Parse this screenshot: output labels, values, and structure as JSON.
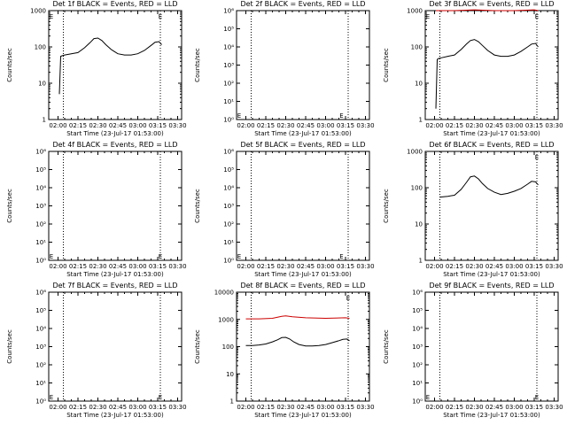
{
  "figure": {
    "common_x_ticks": [
      "02:00",
      "02:15",
      "02:30",
      "02:45",
      "03:00",
      "03:15",
      "03:30"
    ],
    "common_xlabel": "Start Time (23-Jul-17 01:53:00)",
    "common_ylabel": "Counts/sec",
    "colors": {
      "events": "#000000",
      "lld": "#cc0000",
      "axes": "#000000"
    }
  },
  "chart_data": [
    {
      "type": "line",
      "title": "Det 1f BLACK = Events, RED = LLD",
      "xlabel": "Start Time (23-Jul-17 01:53:00)",
      "ylabel": "Counts/sec",
      "xlim": [
        "01:53",
        "03:33"
      ],
      "yscale": "log",
      "ylim": [
        1,
        1000
      ],
      "y_ticks": [
        "1",
        "10",
        "100",
        "1000"
      ],
      "vlines": [
        "02:04",
        "03:17"
      ],
      "markers": [
        {
          "text": "E",
          "x": "01:55",
          "y": "top"
        },
        {
          "text": "E",
          "x": "03:17",
          "y": "top"
        }
      ],
      "series": [
        {
          "color": "#000000",
          "x": [
            "02:01",
            "02:02",
            "02:03",
            "02:05",
            "02:10",
            "02:15",
            "02:20",
            "02:24",
            "02:27",
            "02:30",
            "02:33",
            "02:36",
            "02:40",
            "02:45",
            "02:50",
            "02:55",
            "03:00",
            "03:05",
            "03:10",
            "03:13",
            "03:16",
            "03:18"
          ],
          "y": [
            5,
            55,
            57,
            60,
            65,
            70,
            95,
            130,
            170,
            175,
            150,
            115,
            85,
            65,
            60,
            60,
            65,
            80,
            110,
            135,
            140,
            115
          ]
        }
      ]
    },
    {
      "type": "line",
      "title": "Det 2f BLACK = Events, RED = LLD",
      "xlabel": "Start Time (23-Jul-17 01:53:00)",
      "ylabel": "Counts/sec",
      "xlim": [
        "01:53",
        "03:33"
      ],
      "yscale": "log",
      "ylim": [
        1,
        1000000
      ],
      "y_ticks": [
        "10⁰",
        "10¹",
        "10²",
        "10³",
        "10⁴",
        "10⁵",
        "10⁶"
      ],
      "vlines": [
        "02:04",
        "03:17"
      ],
      "markers": [
        {
          "text": "E",
          "x": "01:55",
          "y": "bottom"
        },
        {
          "text": "E",
          "x": "03:12",
          "y": "bottom"
        }
      ],
      "series": []
    },
    {
      "type": "line",
      "title": "Det 3f BLACK = Events, RED = LLD",
      "xlabel": "Start Time (23-Jul-17 01:53:00)",
      "ylabel": "Counts/sec",
      "xlim": [
        "01:53",
        "03:33"
      ],
      "yscale": "log",
      "ylim": [
        1,
        1000
      ],
      "y_ticks": [
        "1",
        "10",
        "100",
        "1000"
      ],
      "vlines": [
        "02:04",
        "03:17"
      ],
      "markers": [
        {
          "text": "E",
          "x": "01:55",
          "y": "top"
        },
        {
          "text": "E",
          "x": "03:17",
          "y": "top"
        }
      ],
      "series": [
        {
          "color": "#000000",
          "x": [
            "02:01",
            "02:02",
            "02:03",
            "02:05",
            "02:10",
            "02:15",
            "02:20",
            "02:24",
            "02:27",
            "02:30",
            "02:33",
            "02:36",
            "02:40",
            "02:45",
            "02:50",
            "02:55",
            "03:00",
            "03:05",
            "03:10",
            "03:13",
            "03:16",
            "03:18"
          ],
          "y": [
            2,
            45,
            48,
            50,
            55,
            60,
            85,
            120,
            150,
            160,
            140,
            110,
            80,
            60,
            55,
            55,
            60,
            75,
            100,
            120,
            125,
            100
          ]
        },
        {
          "color": "#cc0000",
          "x": [
            "02:01",
            "02:15",
            "02:30",
            "02:45",
            "03:00",
            "03:15",
            "03:18"
          ],
          "y": [
            1000,
            1000,
            1050,
            1000,
            1000,
            1050,
            1000
          ]
        }
      ]
    },
    {
      "type": "line",
      "title": "Det 4f BLACK = Events, RED = LLD",
      "xlabel": "Start Time (23-Jul-17 01:53:00)",
      "ylabel": "Counts/sec",
      "xlim": [
        "01:53",
        "03:33"
      ],
      "yscale": "log",
      "ylim": [
        1,
        1000000
      ],
      "y_ticks": [
        "10⁰",
        "10¹",
        "10²",
        "10³",
        "10⁴",
        "10⁵",
        "10⁶"
      ],
      "vlines": [
        "02:04",
        "03:17"
      ],
      "markers": [
        {
          "text": "E",
          "x": "01:55",
          "y": "bottom"
        },
        {
          "text": "E",
          "x": "03:17",
          "y": "bottom"
        }
      ],
      "series": []
    },
    {
      "type": "line",
      "title": "Det 5f BLACK = Events, RED = LLD",
      "xlabel": "Start Time (23-Jul-17 01:53:00)",
      "ylabel": "Counts/sec",
      "xlim": [
        "01:53",
        "03:33"
      ],
      "yscale": "log",
      "ylim": [
        1,
        1000000
      ],
      "y_ticks": [
        "10⁰",
        "10¹",
        "10²",
        "10³",
        "10⁴",
        "10⁵",
        "10⁶"
      ],
      "vlines": [
        "02:04",
        "03:17"
      ],
      "markers": [
        {
          "text": "E",
          "x": "01:55",
          "y": "bottom"
        },
        {
          "text": "E",
          "x": "03:12",
          "y": "bottom"
        }
      ],
      "series": []
    },
    {
      "type": "line",
      "title": "Det 6f BLACK = Events, RED = LLD",
      "xlabel": "Start Time (23-Jul-17 01:53:00)",
      "ylabel": "Counts/sec",
      "xlim": [
        "01:53",
        "03:33"
      ],
      "yscale": "log",
      "ylim": [
        1,
        1000
      ],
      "y_ticks": [
        "1",
        "10",
        "100",
        "1000"
      ],
      "vlines": [
        "02:04",
        "03:17"
      ],
      "markers": [
        {
          "text": "E",
          "x": "03:17",
          "y": "top"
        }
      ],
      "series": [
        {
          "color": "#000000",
          "x": [
            "02:04",
            "02:10",
            "02:15",
            "02:20",
            "02:24",
            "02:27",
            "02:30",
            "02:33",
            "02:36",
            "02:40",
            "02:45",
            "02:50",
            "02:55",
            "03:00",
            "03:05",
            "03:10",
            "03:13",
            "03:16",
            "03:18"
          ],
          "y": [
            55,
            58,
            62,
            90,
            140,
            200,
            210,
            175,
            130,
            95,
            75,
            65,
            70,
            80,
            95,
            125,
            150,
            145,
            120
          ]
        }
      ]
    },
    {
      "type": "line",
      "title": "Det 7f BLACK = Events, RED = LLD",
      "xlabel": "Start Time (23-Jul-17 01:53:00)",
      "ylabel": "Counts/sec",
      "xlim": [
        "01:53",
        "03:33"
      ],
      "yscale": "log",
      "ylim": [
        1,
        1000000
      ],
      "y_ticks": [
        "10⁰",
        "10¹",
        "10²",
        "10³",
        "10⁴",
        "10⁵",
        "10⁶"
      ],
      "vlines": [
        "02:04",
        "03:17"
      ],
      "markers": [
        {
          "text": "E",
          "x": "01:55",
          "y": "bottom"
        },
        {
          "text": "E",
          "x": "03:17",
          "y": "bottom"
        }
      ],
      "series": []
    },
    {
      "type": "line",
      "title": "Det 8f BLACK = Events, RED = LLD",
      "xlabel": "Start Time (23-Jul-17 01:53:00)",
      "ylabel": "Counts/sec",
      "xlim": [
        "01:53",
        "03:33"
      ],
      "yscale": "log",
      "ylim": [
        1,
        10000
      ],
      "y_ticks": [
        "1",
        "10",
        "100",
        "1000",
        "10000"
      ],
      "vlines": [
        "02:04",
        "03:17"
      ],
      "markers": [
        {
          "text": "E",
          "x": "03:17",
          "y": "top"
        }
      ],
      "series": [
        {
          "color": "#000000",
          "x": [
            "02:00",
            "02:05",
            "02:10",
            "02:15",
            "02:20",
            "02:24",
            "02:27",
            "02:30",
            "02:33",
            "02:36",
            "02:40",
            "02:45",
            "02:50",
            "02:55",
            "03:00",
            "03:05",
            "03:10",
            "03:13",
            "03:16",
            "03:18"
          ],
          "y": [
            110,
            110,
            115,
            125,
            150,
            180,
            215,
            220,
            190,
            150,
            120,
            105,
            105,
            110,
            120,
            140,
            165,
            185,
            190,
            165
          ]
        },
        {
          "color": "#cc0000",
          "x": [
            "02:00",
            "02:10",
            "02:20",
            "02:27",
            "02:30",
            "02:35",
            "02:45",
            "03:00",
            "03:15",
            "03:18"
          ],
          "y": [
            1050,
            1050,
            1100,
            1300,
            1350,
            1250,
            1150,
            1100,
            1150,
            1100
          ]
        }
      ]
    },
    {
      "type": "line",
      "title": "Det 9f BLACK = Events, RED = LLD",
      "xlabel": "Start Time (23-Jul-17 01:53:00)",
      "ylabel": "Counts/sec",
      "xlim": [
        "01:53",
        "03:33"
      ],
      "yscale": "log",
      "ylim": [
        1,
        1000000
      ],
      "y_ticks": [
        "10⁰",
        "10¹",
        "10²",
        "10³",
        "10⁴",
        "10⁵",
        "10⁶"
      ],
      "vlines": [
        "02:04",
        "03:17"
      ],
      "markers": [
        {
          "text": "E",
          "x": "01:55",
          "y": "bottom"
        },
        {
          "text": "E",
          "x": "03:17",
          "y": "bottom"
        }
      ],
      "series": []
    }
  ]
}
